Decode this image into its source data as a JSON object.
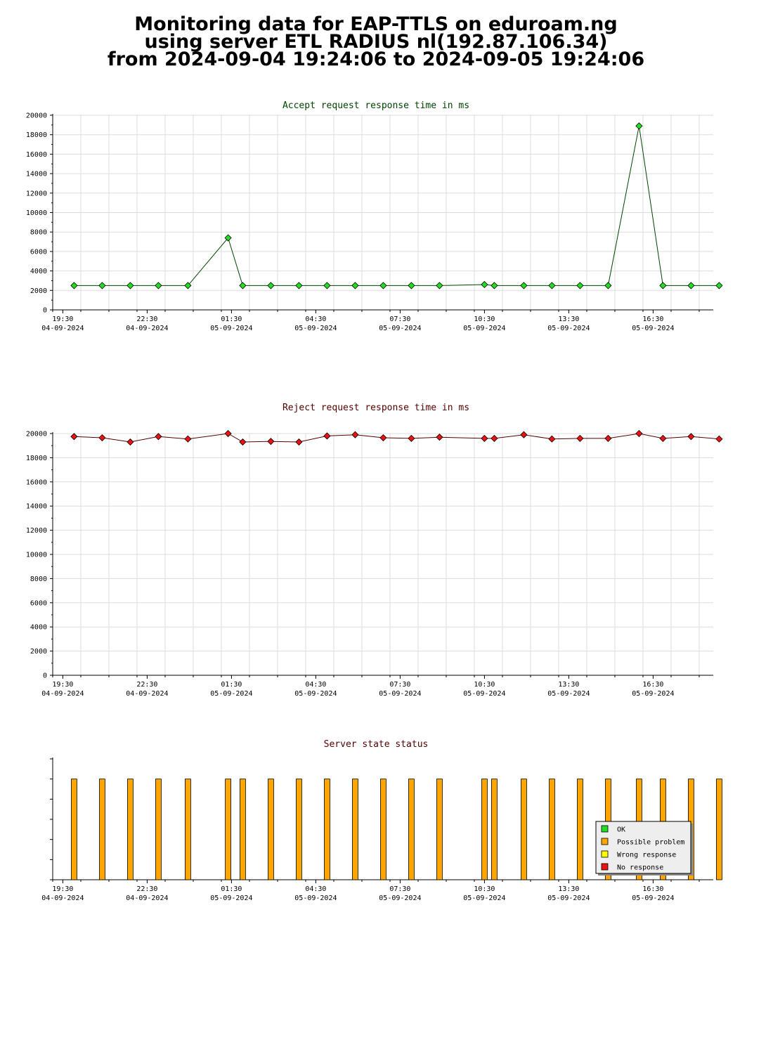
{
  "page": {
    "title_lines": [
      "Monitoring data for EAP-TTLS on eduroam.ng",
      "using server ETL RADIUS nl(192.87.106.34)",
      "from 2024-09-04 19:24:06 to 2024-09-05 19:24:06"
    ]
  },
  "x_axis": {
    "unit": "hours since 2024-09-04 19:30",
    "ticks": [
      {
        "x": 0,
        "time": "19:30",
        "date": "04-09-2024"
      },
      {
        "x": 3,
        "time": "22:30",
        "date": "04-09-2024"
      },
      {
        "x": 6,
        "time": "01:30",
        "date": "05-09-2024"
      },
      {
        "x": 9,
        "time": "04:30",
        "date": "05-09-2024"
      },
      {
        "x": 12,
        "time": "07:30",
        "date": "05-09-2024"
      },
      {
        "x": 15,
        "time": "10:30",
        "date": "05-09-2024"
      },
      {
        "x": 18,
        "time": "13:30",
        "date": "05-09-2024"
      },
      {
        "x": 21,
        "time": "16:30",
        "date": "05-09-2024"
      }
    ]
  },
  "chart_data": [
    {
      "type": "line",
      "title": "Accept request response time in ms",
      "ylim": [
        0,
        20000
      ],
      "yticks": [
        0,
        2000,
        4000,
        6000,
        8000,
        10000,
        12000,
        14000,
        16000,
        18000,
        20000
      ],
      "grid": true,
      "colors": {
        "line": "#004400",
        "marker": "#22dd22",
        "title": "#004400"
      },
      "series": [
        {
          "x": [
            0.4,
            1.4,
            2.4,
            3.4,
            4.45,
            5.88,
            6.4,
            7.4,
            8.4,
            9.4,
            10.4,
            11.4,
            12.4,
            13.4,
            15.0,
            15.35,
            16.4,
            17.4,
            18.4,
            19.4,
            20.5,
            21.35,
            22.35,
            23.35
          ],
          "y": [
            2500,
            2500,
            2500,
            2500,
            2500,
            7400,
            2500,
            2500,
            2500,
            2500,
            2500,
            2500,
            2500,
            2500,
            2600,
            2500,
            2500,
            2500,
            2500,
            2500,
            18900,
            2500,
            2500,
            2500
          ]
        }
      ]
    },
    {
      "type": "line",
      "title": "Reject request response time in ms",
      "ylim": [
        0,
        20000
      ],
      "yticks": [
        0,
        2000,
        4000,
        6000,
        8000,
        10000,
        12000,
        14000,
        16000,
        18000,
        20000
      ],
      "grid": true,
      "colors": {
        "line": "#550000",
        "marker": "#ee1111",
        "title": "#550000"
      },
      "series": [
        {
          "x": [
            0.4,
            1.4,
            2.4,
            3.4,
            4.45,
            5.88,
            6.4,
            7.4,
            8.4,
            9.4,
            10.4,
            11.4,
            12.4,
            13.4,
            15.0,
            15.35,
            16.4,
            17.4,
            18.4,
            19.4,
            20.5,
            21.35,
            22.35,
            23.35
          ],
          "y": [
            19750,
            19650,
            19300,
            19750,
            19550,
            20000,
            19300,
            19350,
            19300,
            19800,
            19900,
            19650,
            19600,
            19700,
            19600,
            19600,
            19900,
            19550,
            19600,
            19600,
            20000,
            19600,
            19750,
            19550
          ]
        }
      ]
    },
    {
      "type": "bar",
      "title": "Server state status",
      "grid": false,
      "colors": {
        "bar": "#ffa500",
        "title": "#550000"
      },
      "x": [
        0.4,
        1.4,
        2.4,
        3.4,
        4.45,
        5.88,
        6.4,
        7.4,
        8.4,
        9.4,
        10.4,
        11.4,
        12.4,
        13.4,
        15.0,
        15.35,
        16.4,
        17.4,
        18.4,
        19.4,
        20.5,
        21.35,
        22.35,
        23.35
      ],
      "states": [
        "Possible problem",
        "Possible problem",
        "Possible problem",
        "Possible problem",
        "Possible problem",
        "Possible problem",
        "Possible problem",
        "Possible problem",
        "Possible problem",
        "Possible problem",
        "Possible problem",
        "Possible problem",
        "Possible problem",
        "Possible problem",
        "Possible problem",
        "Possible problem",
        "Possible problem",
        "Possible problem",
        "Possible problem",
        "Possible problem",
        "Possible problem",
        "Possible problem",
        "Possible problem",
        "Possible problem"
      ],
      "legend": {
        "placement": "bottom-right",
        "items": [
          {
            "label": "OK",
            "color": "#22dd22"
          },
          {
            "label": "Possible problem",
            "color": "#ffa500"
          },
          {
            "label": "Wrong response",
            "color": "#ffff00"
          },
          {
            "label": "No response",
            "color": "#ee1111"
          }
        ]
      }
    }
  ]
}
